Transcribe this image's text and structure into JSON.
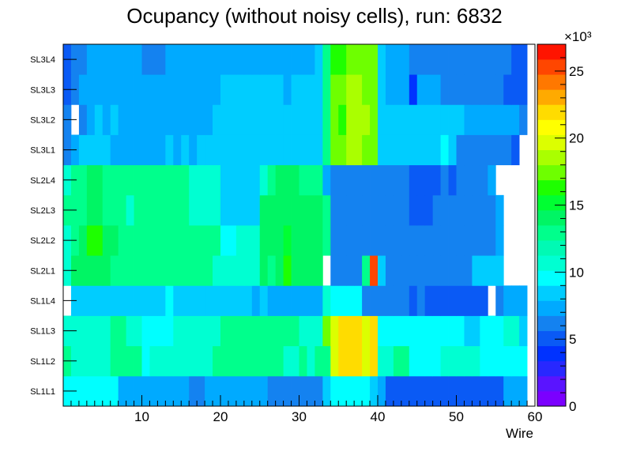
{
  "chart_data": {
    "type": "heatmap",
    "title": "Ocupancy (without noisy cells), run: 6832",
    "xlabel": "Wire",
    "ylabel": "",
    "x_range": [
      0,
      60
    ],
    "x_ticks": [
      10,
      20,
      30,
      40,
      50,
      60
    ],
    "rows": [
      "SL1L1",
      "SL1L2",
      "SL1L3",
      "SL1L4",
      "SL2L1",
      "SL2L2",
      "SL2L3",
      "SL2L4",
      "SL3L1",
      "SL3L2",
      "SL3L3",
      "SL3L4"
    ],
    "colorbar": {
      "exponent_label": "×10³",
      "z_range": [
        0,
        27
      ],
      "ticks": [
        0,
        5,
        10,
        15,
        20,
        25
      ],
      "palette": [
        "#7B00FF",
        "#5A14FF",
        "#2828FF",
        "#0032FF",
        "#0A5AF5",
        "#1482F0",
        "#00AAFF",
        "#00CDFF",
        "#00FFFF",
        "#00FFD2",
        "#00FAB4",
        "#00FF8C",
        "#00F564",
        "#00FF32",
        "#1EFF00",
        "#6EFF00",
        "#AAFF00",
        "#DCFF00",
        "#FFFF00",
        "#FFDC00",
        "#FFAA00",
        "#FF7800",
        "#FF4600",
        "#FF1400"
      ]
    },
    "grid": false,
    "legend": "colorbar-right",
    "values_units": "thousands",
    "values": [
      [
        10,
        10,
        10,
        10,
        10,
        10,
        10,
        7.5,
        7.5,
        7.5,
        7.5,
        7.5,
        7.5,
        7.5,
        7.5,
        7.5,
        6.5,
        6.5,
        7.5,
        7.5,
        7.5,
        7.5,
        7.5,
        7.5,
        7.5,
        7.5,
        6.5,
        6.5,
        6.5,
        6.5,
        6.5,
        6.5,
        6.5,
        8.5,
        10,
        10,
        10,
        10,
        10,
        8.5,
        7.5,
        5.5,
        5.5,
        5.5,
        5.5,
        5.5,
        5.5,
        5.5,
        5.5,
        5.5,
        5.5,
        5.5,
        5.5,
        5.5,
        5.5,
        5.5,
        7.5,
        7.5,
        7.5,
        null
      ],
      [
        12.5,
        11,
        11,
        11,
        11,
        11,
        12.5,
        12.5,
        12.5,
        12.5,
        10,
        11,
        11,
        11,
        11,
        11,
        11,
        11,
        11,
        12.5,
        12.5,
        12.5,
        12.5,
        12.5,
        12.5,
        12.5,
        12.5,
        12.5,
        11,
        11,
        12.5,
        11,
        12.5,
        13,
        20,
        22,
        22,
        22,
        20,
        22,
        11,
        11,
        12.5,
        12.5,
        10,
        10,
        10,
        10,
        11,
        11,
        11,
        11,
        11,
        10,
        10,
        10,
        10,
        10,
        10,
        null
      ],
      [
        11,
        11,
        11,
        11,
        11,
        11,
        12.5,
        12.5,
        11,
        11,
        10,
        10,
        10,
        10,
        11,
        11,
        11,
        11,
        11,
        11,
        12.5,
        12.5,
        12.5,
        12.5,
        12.5,
        12.5,
        12.5,
        12.5,
        12.5,
        12.5,
        11,
        11,
        11,
        17,
        20,
        22,
        22,
        22,
        20,
        22,
        10,
        10,
        10,
        10,
        10,
        10,
        10,
        10,
        10,
        10,
        10,
        8.5,
        8.5,
        10,
        10,
        10,
        11,
        11,
        8.5,
        null
      ],
      [
        null,
        8.5,
        8.5,
        8.5,
        8.5,
        8.5,
        8.5,
        8.5,
        8.5,
        8.5,
        8.5,
        8.5,
        8.5,
        10,
        8.5,
        8.5,
        8.5,
        8.5,
        8.5,
        8.5,
        8.5,
        8.5,
        8.5,
        8.5,
        7.5,
        8.5,
        7.5,
        7.5,
        7.5,
        7.5,
        7.5,
        7.5,
        7.5,
        11,
        10,
        10,
        10,
        10,
        6.5,
        6.5,
        6.5,
        6.5,
        6.5,
        6.5,
        5.5,
        6.5,
        5.5,
        5.5,
        5.5,
        5.5,
        5.5,
        5.5,
        5.5,
        5.5,
        null,
        6.5,
        7.5,
        7.5,
        7.5,
        null
      ],
      [
        11,
        14,
        14,
        14,
        14,
        14,
        13,
        13,
        13,
        13,
        12.5,
        12.5,
        12.5,
        12.5,
        12.5,
        12.5,
        12.5,
        12.5,
        12.5,
        11,
        11,
        11,
        11,
        11,
        11,
        14,
        12.5,
        14,
        16,
        14,
        14,
        14,
        14,
        null,
        6.5,
        6.5,
        6.5,
        6.5,
        13,
        25,
        8.5,
        6.5,
        6.5,
        6.5,
        6.5,
        6.5,
        6.5,
        6.5,
        6.5,
        6.5,
        6.5,
        6.5,
        8.5,
        8.5,
        8.5,
        8.5,
        null,
        null,
        null,
        null
      ],
      [
        11,
        13,
        14,
        16,
        16,
        14,
        14,
        13,
        13,
        13,
        12.5,
        12.5,
        12.5,
        12.5,
        12.5,
        12.5,
        12.5,
        12.5,
        12.5,
        12.5,
        10,
        10,
        11,
        11,
        11,
        14,
        14,
        14,
        15,
        14,
        14,
        14,
        14,
        13,
        6.5,
        6.5,
        6.5,
        6.5,
        6.5,
        6.5,
        6.5,
        6.5,
        6.5,
        6.5,
        6.5,
        6.5,
        6.5,
        6.5,
        6.5,
        6.5,
        6.5,
        6.5,
        6.5,
        6.5,
        6.5,
        7.5,
        null,
        null,
        null,
        null
      ],
      [
        12.5,
        13,
        13,
        14,
        14,
        13,
        13,
        13,
        11,
        12.5,
        13,
        13,
        12.5,
        12.5,
        12.5,
        12.5,
        11,
        11,
        11,
        11,
        8.5,
        8.5,
        8.5,
        8.5,
        8.5,
        14,
        14,
        14,
        14,
        14,
        14,
        14,
        14,
        13,
        6.5,
        6.5,
        6.5,
        6.5,
        6.5,
        6.5,
        6.5,
        6.5,
        6.5,
        6.5,
        5.5,
        5.5,
        5.5,
        6.5,
        6.5,
        6.5,
        6.5,
        6.5,
        6.5,
        6.5,
        6.5,
        7.5,
        null,
        null,
        null,
        null
      ],
      [
        11,
        13,
        13,
        14,
        14,
        13,
        13,
        12.5,
        12.5,
        12.5,
        12.5,
        12.5,
        12.5,
        12.5,
        12.5,
        12.5,
        11,
        11,
        11,
        11,
        8.5,
        8.5,
        8.5,
        8.5,
        8.5,
        11,
        12.5,
        14,
        14,
        14,
        13,
        13,
        13,
        7.5,
        6.5,
        6.5,
        6.5,
        6.5,
        6.5,
        6.5,
        6.5,
        6.5,
        6.5,
        6.5,
        5.5,
        5.5,
        5.5,
        5.5,
        6.5,
        5.5,
        6.5,
        6.5,
        6.5,
        6.5,
        7.5,
        null,
        null,
        null,
        null,
        null
      ],
      [
        6.5,
        7.5,
        8.5,
        8.5,
        8.5,
        8.5,
        7.5,
        7.5,
        7.5,
        7.5,
        7.5,
        7.5,
        7.5,
        8.5,
        7.5,
        8.5,
        7.5,
        8.5,
        8.5,
        8.5,
        8.5,
        8.5,
        8.5,
        8.5,
        8.5,
        8.5,
        8.5,
        8.5,
        8.5,
        8.5,
        8.5,
        8.5,
        8.5,
        13,
        17,
        17,
        18,
        18,
        17,
        17,
        8.5,
        8.5,
        8.5,
        8.5,
        8.5,
        8.5,
        8.5,
        8.5,
        10,
        8.5,
        6.5,
        6.5,
        6.5,
        6.5,
        6.5,
        6.5,
        6.5,
        5.5,
        null,
        null
      ],
      [
        6.5,
        null,
        6.5,
        7.5,
        8.5,
        7.5,
        8.5,
        7.5,
        7.5,
        7.5,
        7.5,
        7.5,
        7.5,
        7.5,
        7.5,
        7.5,
        7.5,
        7.5,
        7.5,
        8.5,
        8.5,
        8.5,
        8.5,
        8.5,
        8.5,
        8.5,
        8.5,
        8.5,
        8.5,
        8.5,
        8.5,
        8.5,
        8.5,
        13,
        17,
        16,
        19,
        19,
        18,
        17,
        8.5,
        8.5,
        8.5,
        8.5,
        8.5,
        8.5,
        8.5,
        8.5,
        8.5,
        8.5,
        8.5,
        7.5,
        7.5,
        7.5,
        7.5,
        7.5,
        7.5,
        7.5,
        6.5,
        null
      ],
      [
        5.5,
        6.5,
        7.5,
        7.5,
        7.5,
        7.5,
        7.5,
        7.5,
        7.5,
        7.5,
        7.5,
        7.5,
        7.5,
        7.5,
        7.5,
        7.5,
        7.5,
        7.5,
        7.5,
        7.5,
        8.5,
        8.5,
        8.5,
        8.5,
        8.5,
        8.5,
        8.5,
        8.5,
        7.5,
        8.5,
        8.5,
        8.5,
        8.5,
        13,
        17,
        17,
        18,
        18,
        17,
        17,
        8.5,
        7.5,
        7.5,
        7.5,
        4,
        7.5,
        7.5,
        7.5,
        6.5,
        6.5,
        6.5,
        6.5,
        6.5,
        6.5,
        6.5,
        6.5,
        5.5,
        5.5,
        5.5,
        null
      ],
      [
        5.5,
        6.5,
        6.5,
        7.5,
        7.5,
        7.5,
        7.5,
        7.5,
        7.5,
        7.5,
        6.5,
        6.5,
        6.5,
        7.5,
        7.5,
        7.5,
        7.5,
        7.5,
        7.5,
        7.5,
        7.5,
        7.5,
        7.5,
        7.5,
        7.5,
        7.5,
        7.5,
        7.5,
        7.5,
        7.5,
        7.5,
        7.5,
        8.5,
        13,
        16,
        16,
        17,
        17,
        17,
        17,
        8.5,
        7.5,
        7.5,
        7.5,
        6.5,
        6.5,
        6.5,
        6.5,
        6.5,
        6.5,
        6.5,
        6.5,
        6.5,
        6.5,
        6.5,
        6.5,
        6.5,
        5.5,
        5.5,
        null
      ]
    ]
  }
}
